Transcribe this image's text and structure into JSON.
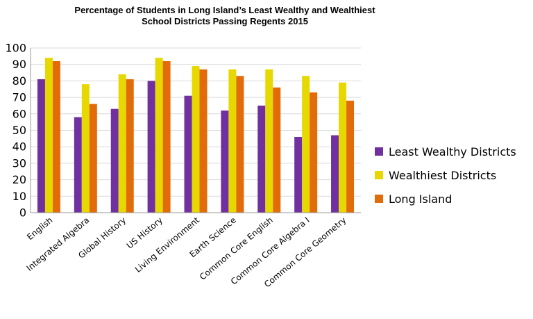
{
  "chart_data": {
    "type": "bar",
    "title_lines": [
      "Percentage of Students in Long Island’s Least Wealthy and Wealthiest",
      "School Districts Passing Regents 2015"
    ],
    "xlabel": "",
    "ylabel": "",
    "ylim": [
      0,
      100
    ],
    "yticks": [
      "0",
      "10",
      "20",
      "30",
      "40",
      "50",
      "60",
      "70",
      "80",
      "90",
      "100"
    ],
    "grid": true,
    "legend_position": "right",
    "categories": [
      "English",
      "Integrated Algebra",
      "Global History",
      "US History",
      "Living Environment",
      "Earth Science",
      "Common Core English",
      "Common Core Algebra I",
      "Common Core Geometry"
    ],
    "series": [
      {
        "name": "Least Wealthy Districts",
        "color": "#7030a0",
        "values": [
          81,
          58,
          63,
          80,
          71,
          62,
          65,
          46,
          47
        ]
      },
      {
        "name": "Wealthiest Districts",
        "color": "#e6d800",
        "values": [
          94,
          78,
          84,
          94,
          89,
          87,
          87,
          83,
          79
        ]
      },
      {
        "name": "Long Island",
        "color": "#e36c0a",
        "values": [
          92,
          66,
          81,
          92,
          87,
          83,
          76,
          73,
          68
        ]
      }
    ],
    "colors": {
      "grid": "#d9d9d9",
      "axis": "#999999"
    }
  }
}
